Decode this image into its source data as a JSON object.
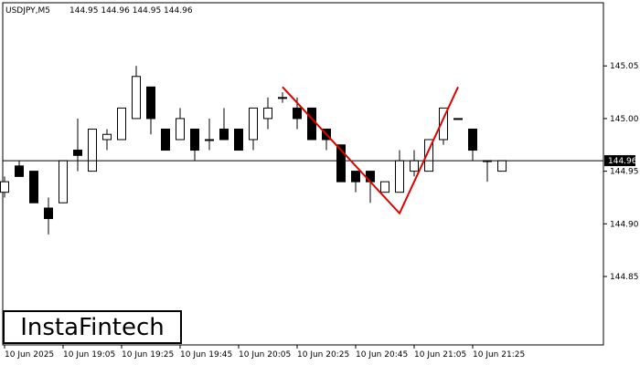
{
  "header": {
    "symbol": "USDJPY,M5",
    "ohlc": "144.95 144.96 144.95 144.96"
  },
  "logo": {
    "text": "InstaFintech"
  },
  "colors": {
    "bull_fill": "#ffffff",
    "bear_fill": "#000000",
    "candle_outline": "#000000",
    "pattern_line": "#e00000",
    "price_line": "#000000",
    "price_label_bg": "#000000",
    "price_label_text": "#ffffff"
  },
  "chart_data": {
    "type": "candlestick",
    "title": "USDJPY,M5",
    "ylim": [
      144.785,
      145.11
    ],
    "y_ticks": [
      "145.05",
      "145.00",
      "144.95",
      "144.90",
      "144.85"
    ],
    "x_ticks": [
      "10 Jun 2025",
      "10 Jun 19:05",
      "10 Jun 19:25",
      "10 Jun 19:45",
      "10 Jun 20:05",
      "10 Jun 20:25",
      "10 Jun 20:45",
      "10 Jun 21:05",
      "10 Jun 21:25"
    ],
    "current_price": "144.96",
    "candles": [
      {
        "o": 144.93,
        "h": 144.945,
        "l": 144.925,
        "c": 144.94
      },
      {
        "o": 144.955,
        "h": 144.96,
        "l": 144.945,
        "c": 144.945
      },
      {
        "o": 144.95,
        "h": 144.95,
        "l": 144.92,
        "c": 144.92
      },
      {
        "o": 144.915,
        "h": 144.925,
        "l": 144.89,
        "c": 144.905
      },
      {
        "o": 144.92,
        "h": 144.96,
        "l": 144.92,
        "c": 144.96
      },
      {
        "o": 144.97,
        "h": 145.0,
        "l": 144.95,
        "c": 144.965
      },
      {
        "o": 144.95,
        "h": 144.99,
        "l": 144.95,
        "c": 144.99
      },
      {
        "o": 144.98,
        "h": 144.99,
        "l": 144.97,
        "c": 144.985
      },
      {
        "o": 144.98,
        "h": 145.01,
        "l": 144.98,
        "c": 145.01
      },
      {
        "o": 145.0,
        "h": 145.05,
        "l": 145.0,
        "c": 145.04
      },
      {
        "o": 145.03,
        "h": 145.03,
        "l": 144.985,
        "c": 145.0
      },
      {
        "o": 144.99,
        "h": 144.99,
        "l": 144.97,
        "c": 144.97
      },
      {
        "o": 144.98,
        "h": 145.01,
        "l": 144.98,
        "c": 145.0
      },
      {
        "o": 144.99,
        "h": 144.99,
        "l": 144.96,
        "c": 144.97
      },
      {
        "o": 144.98,
        "h": 145.0,
        "l": 144.97,
        "c": 144.98
      },
      {
        "o": 144.99,
        "h": 145.01,
        "l": 144.98,
        "c": 144.98
      },
      {
        "o": 144.99,
        "h": 144.99,
        "l": 144.97,
        "c": 144.97
      },
      {
        "o": 144.98,
        "h": 145.01,
        "l": 144.97,
        "c": 145.01
      },
      {
        "o": 145.0,
        "h": 145.02,
        "l": 144.99,
        "c": 145.01
      },
      {
        "o": 145.02,
        "h": 145.025,
        "l": 145.015,
        "c": 145.02
      },
      {
        "o": 145.01,
        "h": 145.02,
        "l": 144.99,
        "c": 145.0
      },
      {
        "o": 145.01,
        "h": 145.01,
        "l": 144.98,
        "c": 144.98
      },
      {
        "o": 144.99,
        "h": 144.99,
        "l": 144.97,
        "c": 144.98
      },
      {
        "o": 144.975,
        "h": 144.975,
        "l": 144.94,
        "c": 144.94
      },
      {
        "o": 144.95,
        "h": 144.95,
        "l": 144.93,
        "c": 144.94
      },
      {
        "o": 144.95,
        "h": 144.95,
        "l": 144.92,
        "c": 144.94
      },
      {
        "o": 144.93,
        "h": 144.94,
        "l": 144.93,
        "c": 144.94
      },
      {
        "o": 144.93,
        "h": 144.97,
        "l": 144.93,
        "c": 144.96
      },
      {
        "o": 144.95,
        "h": 144.97,
        "l": 144.945,
        "c": 144.96
      },
      {
        "o": 144.95,
        "h": 144.98,
        "l": 144.95,
        "c": 144.98
      },
      {
        "o": 144.98,
        "h": 145.01,
        "l": 144.975,
        "c": 145.01
      },
      {
        "o": 145.0,
        "h": 145.0,
        "l": 145.0,
        "c": 145.0
      },
      {
        "o": 144.99,
        "h": 144.99,
        "l": 144.96,
        "c": 144.97
      },
      {
        "o": 144.96,
        "h": 144.96,
        "l": 144.94,
        "c": 144.96
      },
      {
        "o": 144.95,
        "h": 144.96,
        "l": 144.95,
        "c": 144.96
      }
    ],
    "pattern_line": {
      "name": "",
      "points": [
        {
          "index": 19,
          "price": 145.03
        },
        {
          "index": 27,
          "price": 144.91
        },
        {
          "index": 31,
          "price": 145.03
        }
      ]
    }
  }
}
